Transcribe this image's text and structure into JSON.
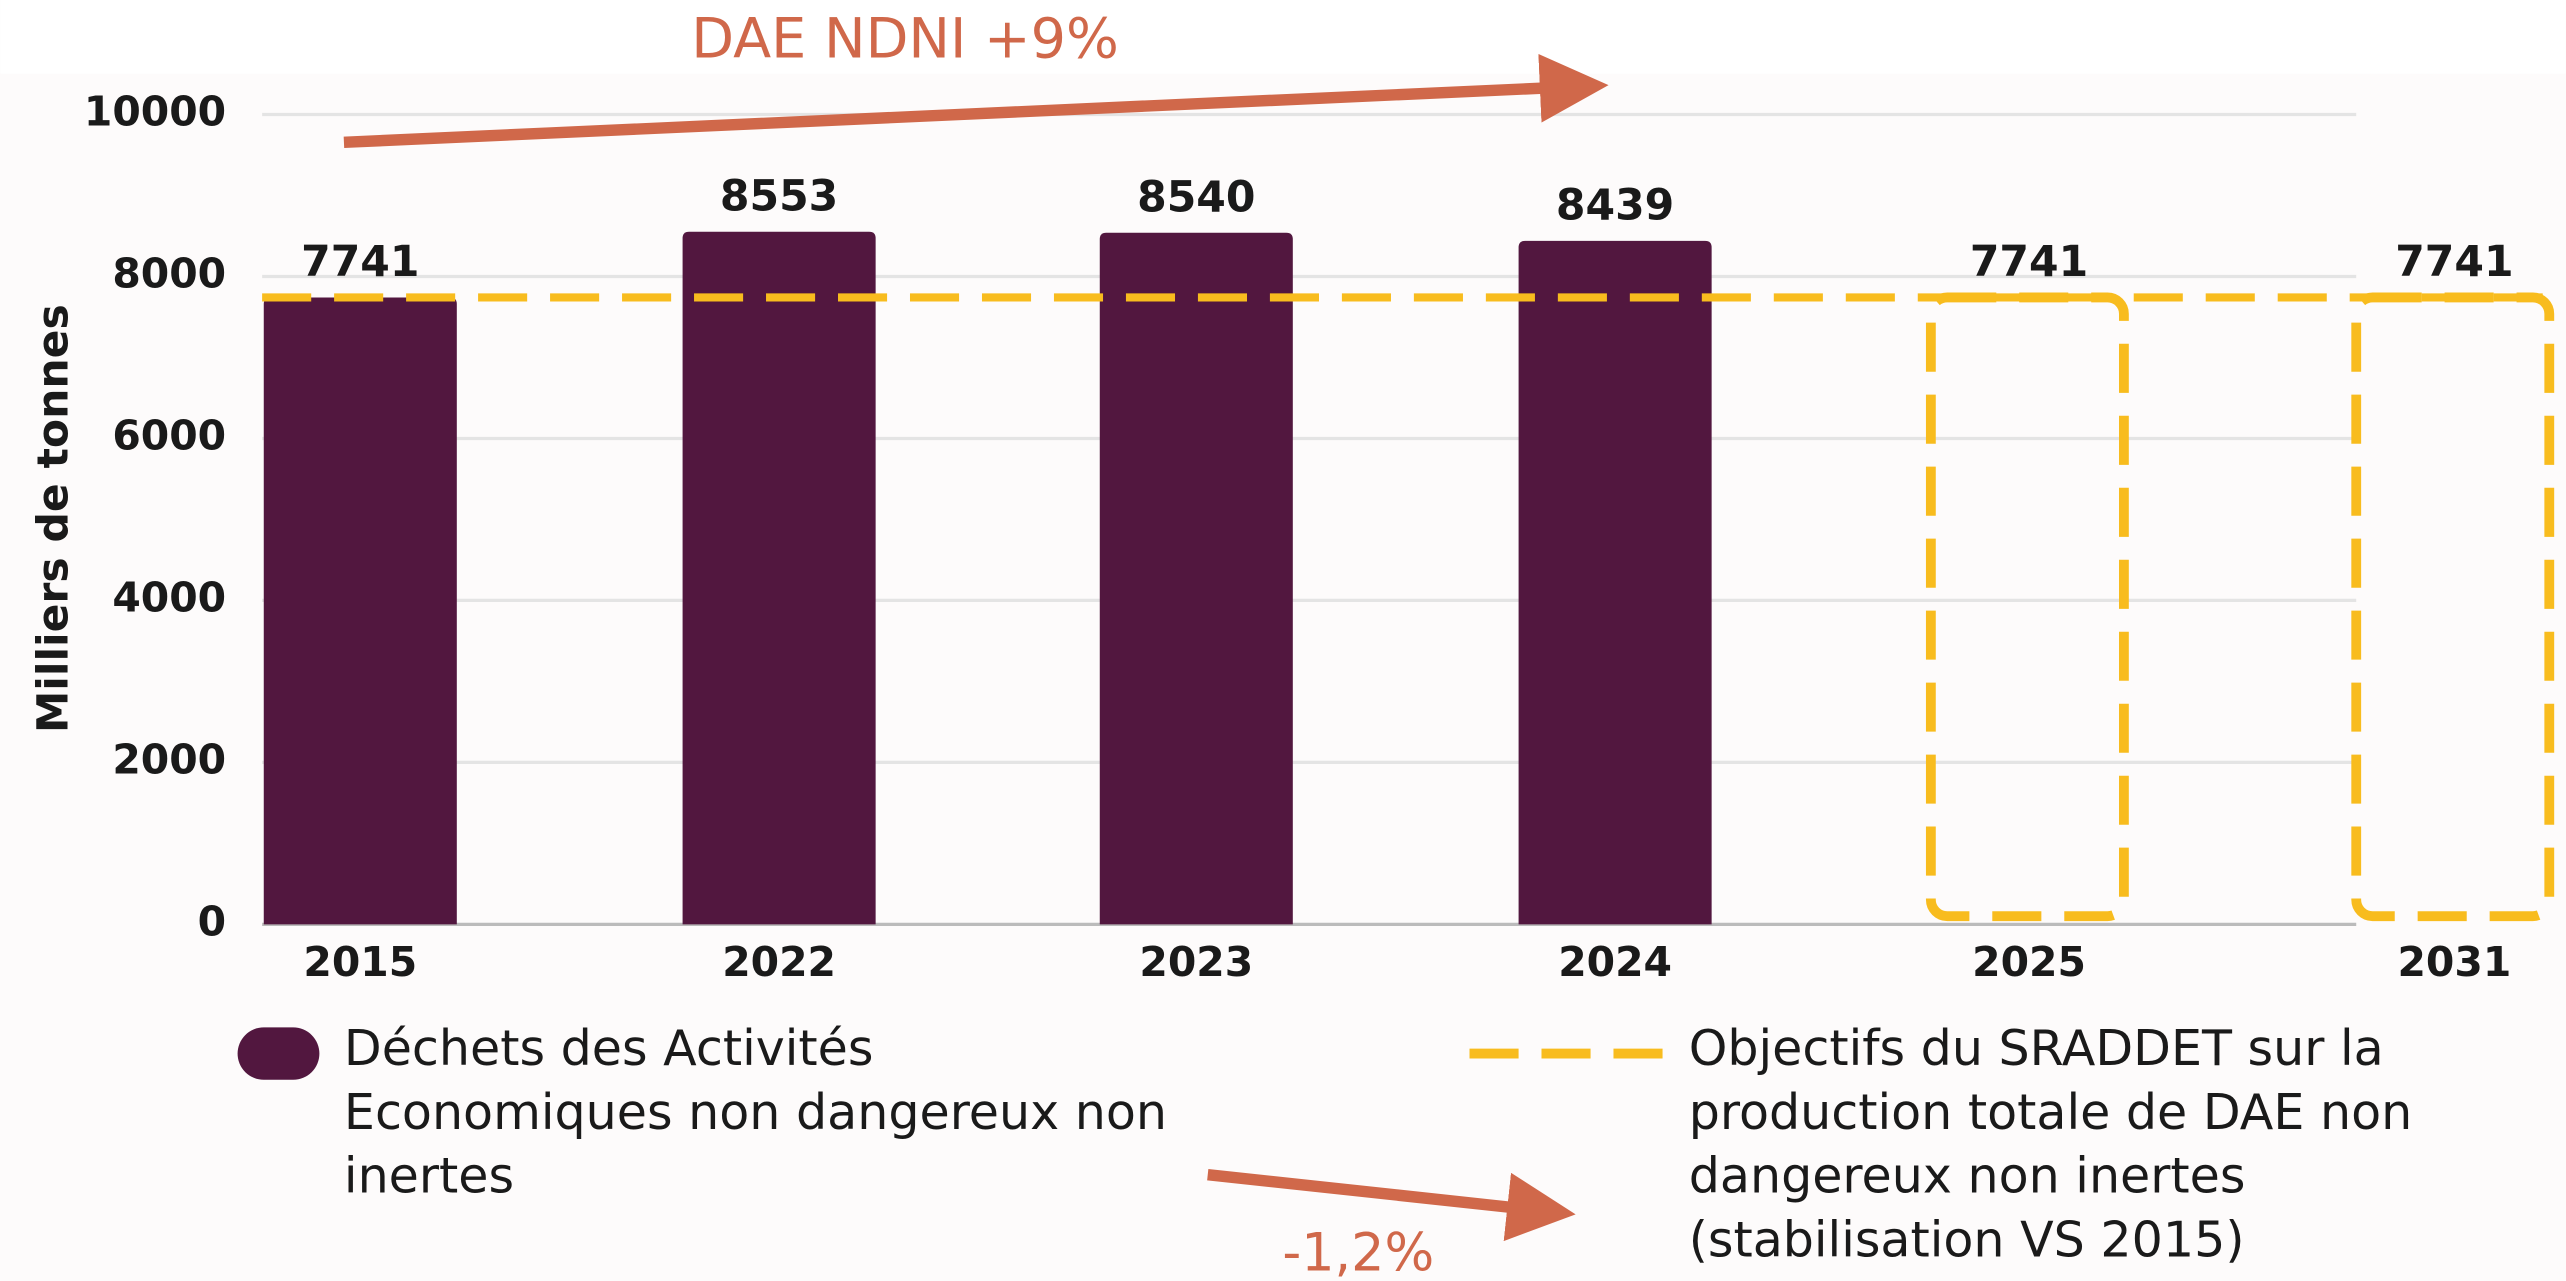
{
  "chart_data": {
    "type": "bar",
    "y_axis_label": "Milliers de tonnes",
    "categories": [
      "2015",
      "2022",
      "2023",
      "2024",
      "2025",
      "2031"
    ],
    "series": [
      {
        "name": "Déchets des Activités Economiques non dangereux non inertes",
        "color": "#52173f",
        "values": [
          7741,
          8553,
          8540,
          8439,
          null,
          null
        ]
      },
      {
        "name": "Objectifs du SRADDET sur la production totale de DAE non dangereux non inertes (stabilisation VS 2015)",
        "color": "#f8bc1e",
        "values": [
          null,
          null,
          null,
          null,
          7741,
          7741
        ]
      }
    ],
    "target_line": 7741,
    "annotations": [
      "DAE NDNI +9%",
      "-1,2%"
    ],
    "annotation_color": "#d0684a",
    "ylim": [
      0,
      10000
    ],
    "yticks": [
      0,
      2000,
      4000,
      6000,
      8000,
      10000
    ],
    "grid": true
  }
}
